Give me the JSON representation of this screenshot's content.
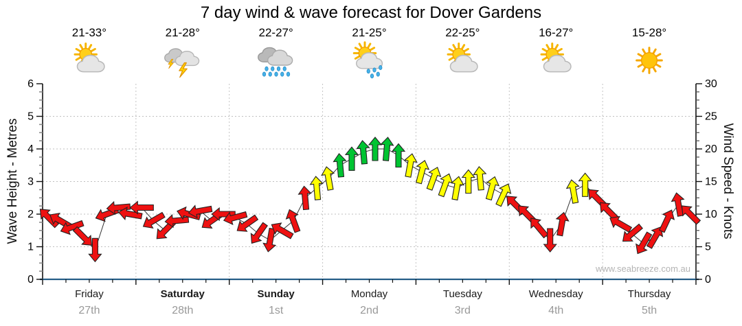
{
  "title": "7 day wind & wave forecast for Dover Gardens",
  "watermark": "www.seabreeze.com.au",
  "axes": {
    "left": {
      "label": "Wave Height - Metres",
      "ticks": [
        0,
        1,
        2,
        3,
        4,
        5,
        6
      ],
      "max": 6
    },
    "right": {
      "label": "Wind Speed - Knots",
      "ticks": [
        0,
        5,
        10,
        15,
        20,
        25,
        30
      ],
      "max": 30
    }
  },
  "days": [
    {
      "name": "Friday",
      "date": "27th",
      "temp": "21-33°",
      "icon": "sun-cloud",
      "bold": false
    },
    {
      "name": "Saturday",
      "date": "28th",
      "temp": "21-28°",
      "icon": "storm",
      "bold": true
    },
    {
      "name": "Sunday",
      "date": "1st",
      "temp": "22-27°",
      "icon": "rain",
      "bold": true
    },
    {
      "name": "Monday",
      "date": "2nd",
      "temp": "21-25°",
      "icon": "sun-rain",
      "bold": false
    },
    {
      "name": "Tuesday",
      "date": "3rd",
      "temp": "22-25°",
      "icon": "sun-cloud",
      "bold": false
    },
    {
      "name": "Wednesday",
      "date": "4th",
      "temp": "16-27°",
      "icon": "sun-cloud",
      "bold": false
    },
    {
      "name": "Thursday",
      "date": "5th",
      "temp": "15-28°",
      "icon": "sun",
      "bold": false
    }
  ],
  "chart_data": {
    "type": "line",
    "subtype": "wind-direction-arrows",
    "x_unit": "3-hourly steps, 8 per day, 7 days",
    "categories": [
      "Friday 27th",
      "Saturday 28th",
      "Sunday 1st",
      "Monday 2nd",
      "Tuesday 3rd",
      "Wednesday 4th",
      "Thursday 5th"
    ],
    "ylabel_left": "Wave Height - Metres",
    "ylabel_right": "Wind Speed - Knots",
    "ylim_left_metres": [
      0,
      6
    ],
    "ylim_right_knots": [
      0,
      30
    ],
    "grid": "dotted horizontal each 1m/5kt, dotted vertical at day boundaries",
    "wind_speed_knots": [
      9.5,
      9,
      8,
      6.5,
      4.5,
      10,
      11,
      10,
      11,
      9,
      7.5,
      9,
      10,
      10.5,
      9,
      10,
      9.5,
      8.5,
      7,
      6,
      7.5,
      9,
      12.5,
      14,
      15.5,
      17.5,
      18.5,
      19.5,
      20,
      20,
      19,
      17.5,
      16.5,
      15.5,
      14.5,
      14,
      15,
      15.5,
      14,
      13,
      11.5,
      10,
      8,
      6,
      8.5,
      13.5,
      14.5,
      12.5,
      10.5,
      8.5,
      7,
      5.5,
      6.5,
      9,
      11.5,
      10
    ],
    "wind_dir_deg_screen": [
      315,
      300,
      250,
      135,
      180,
      250,
      265,
      280,
      270,
      240,
      225,
      265,
      285,
      260,
      235,
      270,
      255,
      235,
      215,
      190,
      300,
      340,
      355,
      355,
      350,
      355,
      0,
      355,
      0,
      5,
      0,
      10,
      15,
      20,
      20,
      10,
      0,
      355,
      15,
      25,
      315,
      315,
      320,
      180,
      10,
      350,
      0,
      315,
      315,
      300,
      230,
      210,
      30,
      25,
      350,
      315
    ],
    "arrow_colors": [
      "red",
      "red",
      "red",
      "red",
      "red",
      "red",
      "red",
      "red",
      "red",
      "red",
      "red",
      "red",
      "red",
      "red",
      "red",
      "red",
      "red",
      "red",
      "red",
      "red",
      "red",
      "red",
      "red",
      "yellow",
      "yellow",
      "green",
      "green",
      "green",
      "green",
      "green",
      "green",
      "yellow",
      "yellow",
      "yellow",
      "yellow",
      "yellow",
      "yellow",
      "yellow",
      "yellow",
      "yellow",
      "red",
      "red",
      "red",
      "red",
      "red",
      "yellow",
      "yellow",
      "red",
      "red",
      "red",
      "red",
      "red",
      "red",
      "red",
      "red",
      "red"
    ],
    "colors": {
      "red": "#ee1111",
      "yellow": "#ffff00",
      "green": "#00c432",
      "outline": "#222222"
    }
  }
}
